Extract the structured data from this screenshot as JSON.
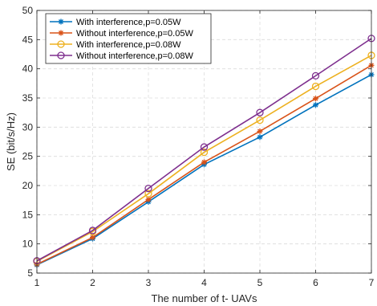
{
  "chart_data": {
    "type": "line",
    "title": "",
    "xlabel": "The number of t- UAVs",
    "ylabel": "SE (bit/s/Hz)",
    "xlim": [
      1,
      7
    ],
    "ylim": [
      5,
      50
    ],
    "x_ticks": [
      1,
      2,
      3,
      4,
      5,
      6,
      7
    ],
    "y_ticks": [
      5,
      10,
      15,
      20,
      25,
      30,
      35,
      40,
      45,
      50
    ],
    "grid": true,
    "legend_position": "top-left",
    "x": [
      1,
      2,
      3,
      4,
      5,
      6,
      7
    ],
    "series": [
      {
        "name": "With interference,p=0.05W",
        "color": "#0072BD",
        "marker": "asterisk",
        "values": [
          6.4,
          10.9,
          17.2,
          23.6,
          28.3,
          33.8,
          39.0
        ]
      },
      {
        "name": "Without interference,p=0.05W",
        "color": "#D95319",
        "marker": "asterisk",
        "values": [
          6.5,
          11.1,
          17.6,
          24.0,
          29.3,
          34.9,
          40.6
        ]
      },
      {
        "name": "With interference,p=0.08W",
        "color": "#EDB120",
        "marker": "circle",
        "values": [
          7.0,
          12.1,
          18.6,
          25.7,
          31.2,
          37.0,
          42.3
        ]
      },
      {
        "name": "Without interference,p=0.08W",
        "color": "#7E2F8E",
        "marker": "circle",
        "values": [
          7.1,
          12.3,
          19.5,
          26.6,
          32.5,
          38.8,
          45.2
        ]
      }
    ]
  }
}
